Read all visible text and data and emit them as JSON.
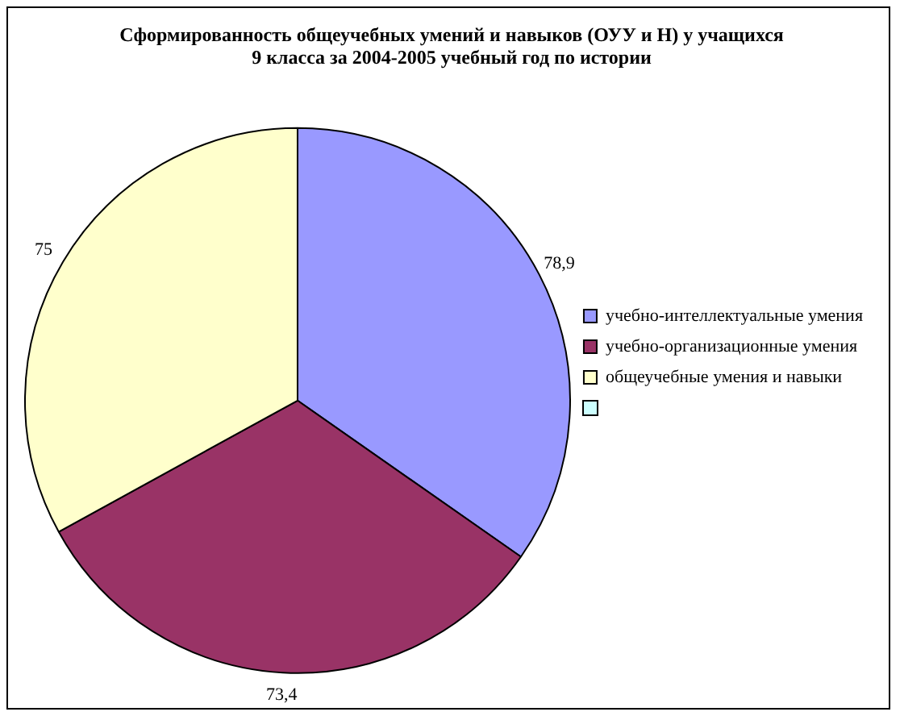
{
  "chart_data": {
    "type": "pie",
    "title": "Сформированность общеучебных умений и навыков (ОУУ и Н) у учащихся\n9 класса за 2004-2005 учебный год по истории",
    "categories": [
      "учебно-интеллектуальные умения",
      "учебно-организационные умения",
      "общеучебные умения и навыки",
      null
    ],
    "values": [
      78.9,
      73.4,
      75,
      null
    ],
    "colors": [
      "#9999ff",
      "#993366",
      "#ffffcc",
      "#ccffff"
    ],
    "value_labels": [
      "78,9",
      "73,4",
      "75",
      null
    ],
    "legend": "right"
  }
}
